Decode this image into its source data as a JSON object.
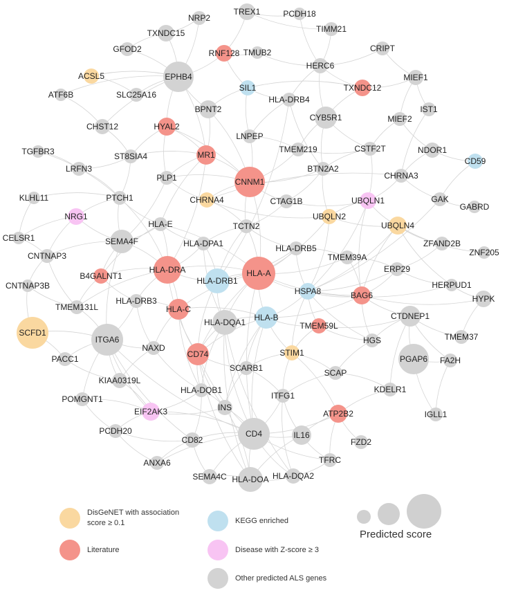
{
  "colors": {
    "disgenet": "#fad8a0",
    "literature": "#f4938a",
    "kegg": "#bfe0ef",
    "disease": "#f8c4f3",
    "other": "#d3d3d3",
    "edge": "#d4d4d4"
  },
  "legend": {
    "disgenet_line1": "DisGeNET with association",
    "disgenet_line2": "score ≥ 0.1",
    "literature": "Literature",
    "kegg": "KEGG enriched",
    "disease": "Disease with Z-score ≥ 3",
    "other": "Other predicted ALS genes",
    "size_title": "Predicted score"
  },
  "nodes": [
    {
      "label": "TREX1",
      "category": "other"
    },
    {
      "label": "NRP2",
      "category": "other"
    },
    {
      "label": "PCDH18",
      "category": "other"
    },
    {
      "label": "TXNDC15",
      "category": "other"
    },
    {
      "label": "TIMM21",
      "category": "other"
    },
    {
      "label": "GFOD2",
      "category": "other"
    },
    {
      "label": "RNF128",
      "category": "literature"
    },
    {
      "label": "TMUB2",
      "category": "other"
    },
    {
      "label": "CRIPT",
      "category": "other"
    },
    {
      "label": "HERC6",
      "category": "other"
    },
    {
      "label": "ACSL5",
      "category": "disgenet"
    },
    {
      "label": "EPHB4",
      "category": "other"
    },
    {
      "label": "MIEF1",
      "category": "other"
    },
    {
      "label": "SIL1",
      "category": "kegg"
    },
    {
      "label": "TXNDC12",
      "category": "literature"
    },
    {
      "label": "SLC25A16",
      "category": "other"
    },
    {
      "label": "HLA-DRB4",
      "category": "other"
    },
    {
      "label": "ATF6B",
      "category": "other"
    },
    {
      "label": "BPNT2",
      "category": "other"
    },
    {
      "label": "CYB5R1",
      "category": "other"
    },
    {
      "label": "IST1",
      "category": "other"
    },
    {
      "label": "CHST12",
      "category": "other"
    },
    {
      "label": "HYAL2",
      "category": "literature"
    },
    {
      "label": "MIEF2",
      "category": "other"
    },
    {
      "label": "LNPEP",
      "category": "other"
    },
    {
      "label": "TGFBR3",
      "category": "other"
    },
    {
      "label": "ST8SIA4",
      "category": "other"
    },
    {
      "label": "MR1",
      "category": "literature"
    },
    {
      "label": "TMEM219",
      "category": "other"
    },
    {
      "label": "CSTF2T",
      "category": "other"
    },
    {
      "label": "NDOR1",
      "category": "other"
    },
    {
      "label": "LRFN3",
      "category": "other"
    },
    {
      "label": "CD59",
      "category": "kegg"
    },
    {
      "label": "CNNM1",
      "category": "literature"
    },
    {
      "label": "PLP1",
      "category": "other"
    },
    {
      "label": "BTN2A2",
      "category": "other"
    },
    {
      "label": "CHRNA3",
      "category": "other"
    },
    {
      "label": "KLHL11",
      "category": "other"
    },
    {
      "label": "PTCH1",
      "category": "other"
    },
    {
      "label": "CHRNA4",
      "category": "disgenet"
    },
    {
      "label": "CTAG1B",
      "category": "other"
    },
    {
      "label": "UBQLN1",
      "category": "disease"
    },
    {
      "label": "GAK",
      "category": "other"
    },
    {
      "label": "GABRD",
      "category": "other"
    },
    {
      "label": "NRG1",
      "category": "disease"
    },
    {
      "label": "UBQLN2",
      "category": "disgenet"
    },
    {
      "label": "UBQLN4",
      "category": "disgenet"
    },
    {
      "label": "HLA-E",
      "category": "other"
    },
    {
      "label": "TCTN2",
      "category": "other"
    },
    {
      "label": "CELSR1",
      "category": "other"
    },
    {
      "label": "SEMA4F",
      "category": "other"
    },
    {
      "label": "HLA-DPA1",
      "category": "other"
    },
    {
      "label": "HLA-DRB5",
      "category": "other"
    },
    {
      "label": "ZFAND2B",
      "category": "other"
    },
    {
      "label": "CNTNAP3",
      "category": "other"
    },
    {
      "label": "ZNF205",
      "category": "other"
    },
    {
      "label": "TMEM39A",
      "category": "other"
    },
    {
      "label": "HLA-DRA",
      "category": "literature"
    },
    {
      "label": "HLA-A",
      "category": "literature"
    },
    {
      "label": "ERP29",
      "category": "other"
    },
    {
      "label": "B4GALNT1",
      "category": "literature"
    },
    {
      "label": "HLA-DRB1",
      "category": "kegg"
    },
    {
      "label": "CNTNAP3B",
      "category": "other"
    },
    {
      "label": "HERPUD1",
      "category": "other"
    },
    {
      "label": "HSPA8",
      "category": "kegg"
    },
    {
      "label": "HYPK",
      "category": "other"
    },
    {
      "label": "BAG6",
      "category": "literature"
    },
    {
      "label": "TMEM131L",
      "category": "other"
    },
    {
      "label": "HLA-DRB3",
      "category": "other"
    },
    {
      "label": "HLA-C",
      "category": "literature"
    },
    {
      "label": "HLA-B",
      "category": "kegg"
    },
    {
      "label": "HLA-DQA1",
      "category": "other"
    },
    {
      "label": "CTDNEP1",
      "category": "other"
    },
    {
      "label": "SCFD1",
      "category": "disgenet"
    },
    {
      "label": "TMEM59L",
      "category": "literature"
    },
    {
      "label": "TMEM37",
      "category": "other"
    },
    {
      "label": "ITGA6",
      "category": "other"
    },
    {
      "label": "HGS",
      "category": "other"
    },
    {
      "label": "NAXD",
      "category": "other"
    },
    {
      "label": "STIM1",
      "category": "disgenet"
    },
    {
      "label": "PACC1",
      "category": "other"
    },
    {
      "label": "CD74",
      "category": "literature"
    },
    {
      "label": "PGAP6",
      "category": "other"
    },
    {
      "label": "FA2H",
      "category": "other"
    },
    {
      "label": "SCARB1",
      "category": "other"
    },
    {
      "label": "SCAP",
      "category": "other"
    },
    {
      "label": "KIAA0319L",
      "category": "other"
    },
    {
      "label": "KDELR1",
      "category": "other"
    },
    {
      "label": "HLA-DQB1",
      "category": "other"
    },
    {
      "label": "ITFG1",
      "category": "other"
    },
    {
      "label": "POMGNT1",
      "category": "other"
    },
    {
      "label": "IGLL1",
      "category": "other"
    },
    {
      "label": "EIF2AK3",
      "category": "disease"
    },
    {
      "label": "INS",
      "category": "other"
    },
    {
      "label": "ATP2B2",
      "category": "literature"
    },
    {
      "label": "PCDH20",
      "category": "other"
    },
    {
      "label": "CD4",
      "category": "other"
    },
    {
      "label": "IL16",
      "category": "other"
    },
    {
      "label": "CD82",
      "category": "other"
    },
    {
      "label": "FZD2",
      "category": "other"
    },
    {
      "label": "ANXA6",
      "category": "other"
    },
    {
      "label": "TFRC",
      "category": "other"
    },
    {
      "label": "SEMA4C",
      "category": "other"
    },
    {
      "label": "HLA-DOA",
      "category": "other"
    },
    {
      "label": "HLA-DQA2",
      "category": "other"
    }
  ]
}
